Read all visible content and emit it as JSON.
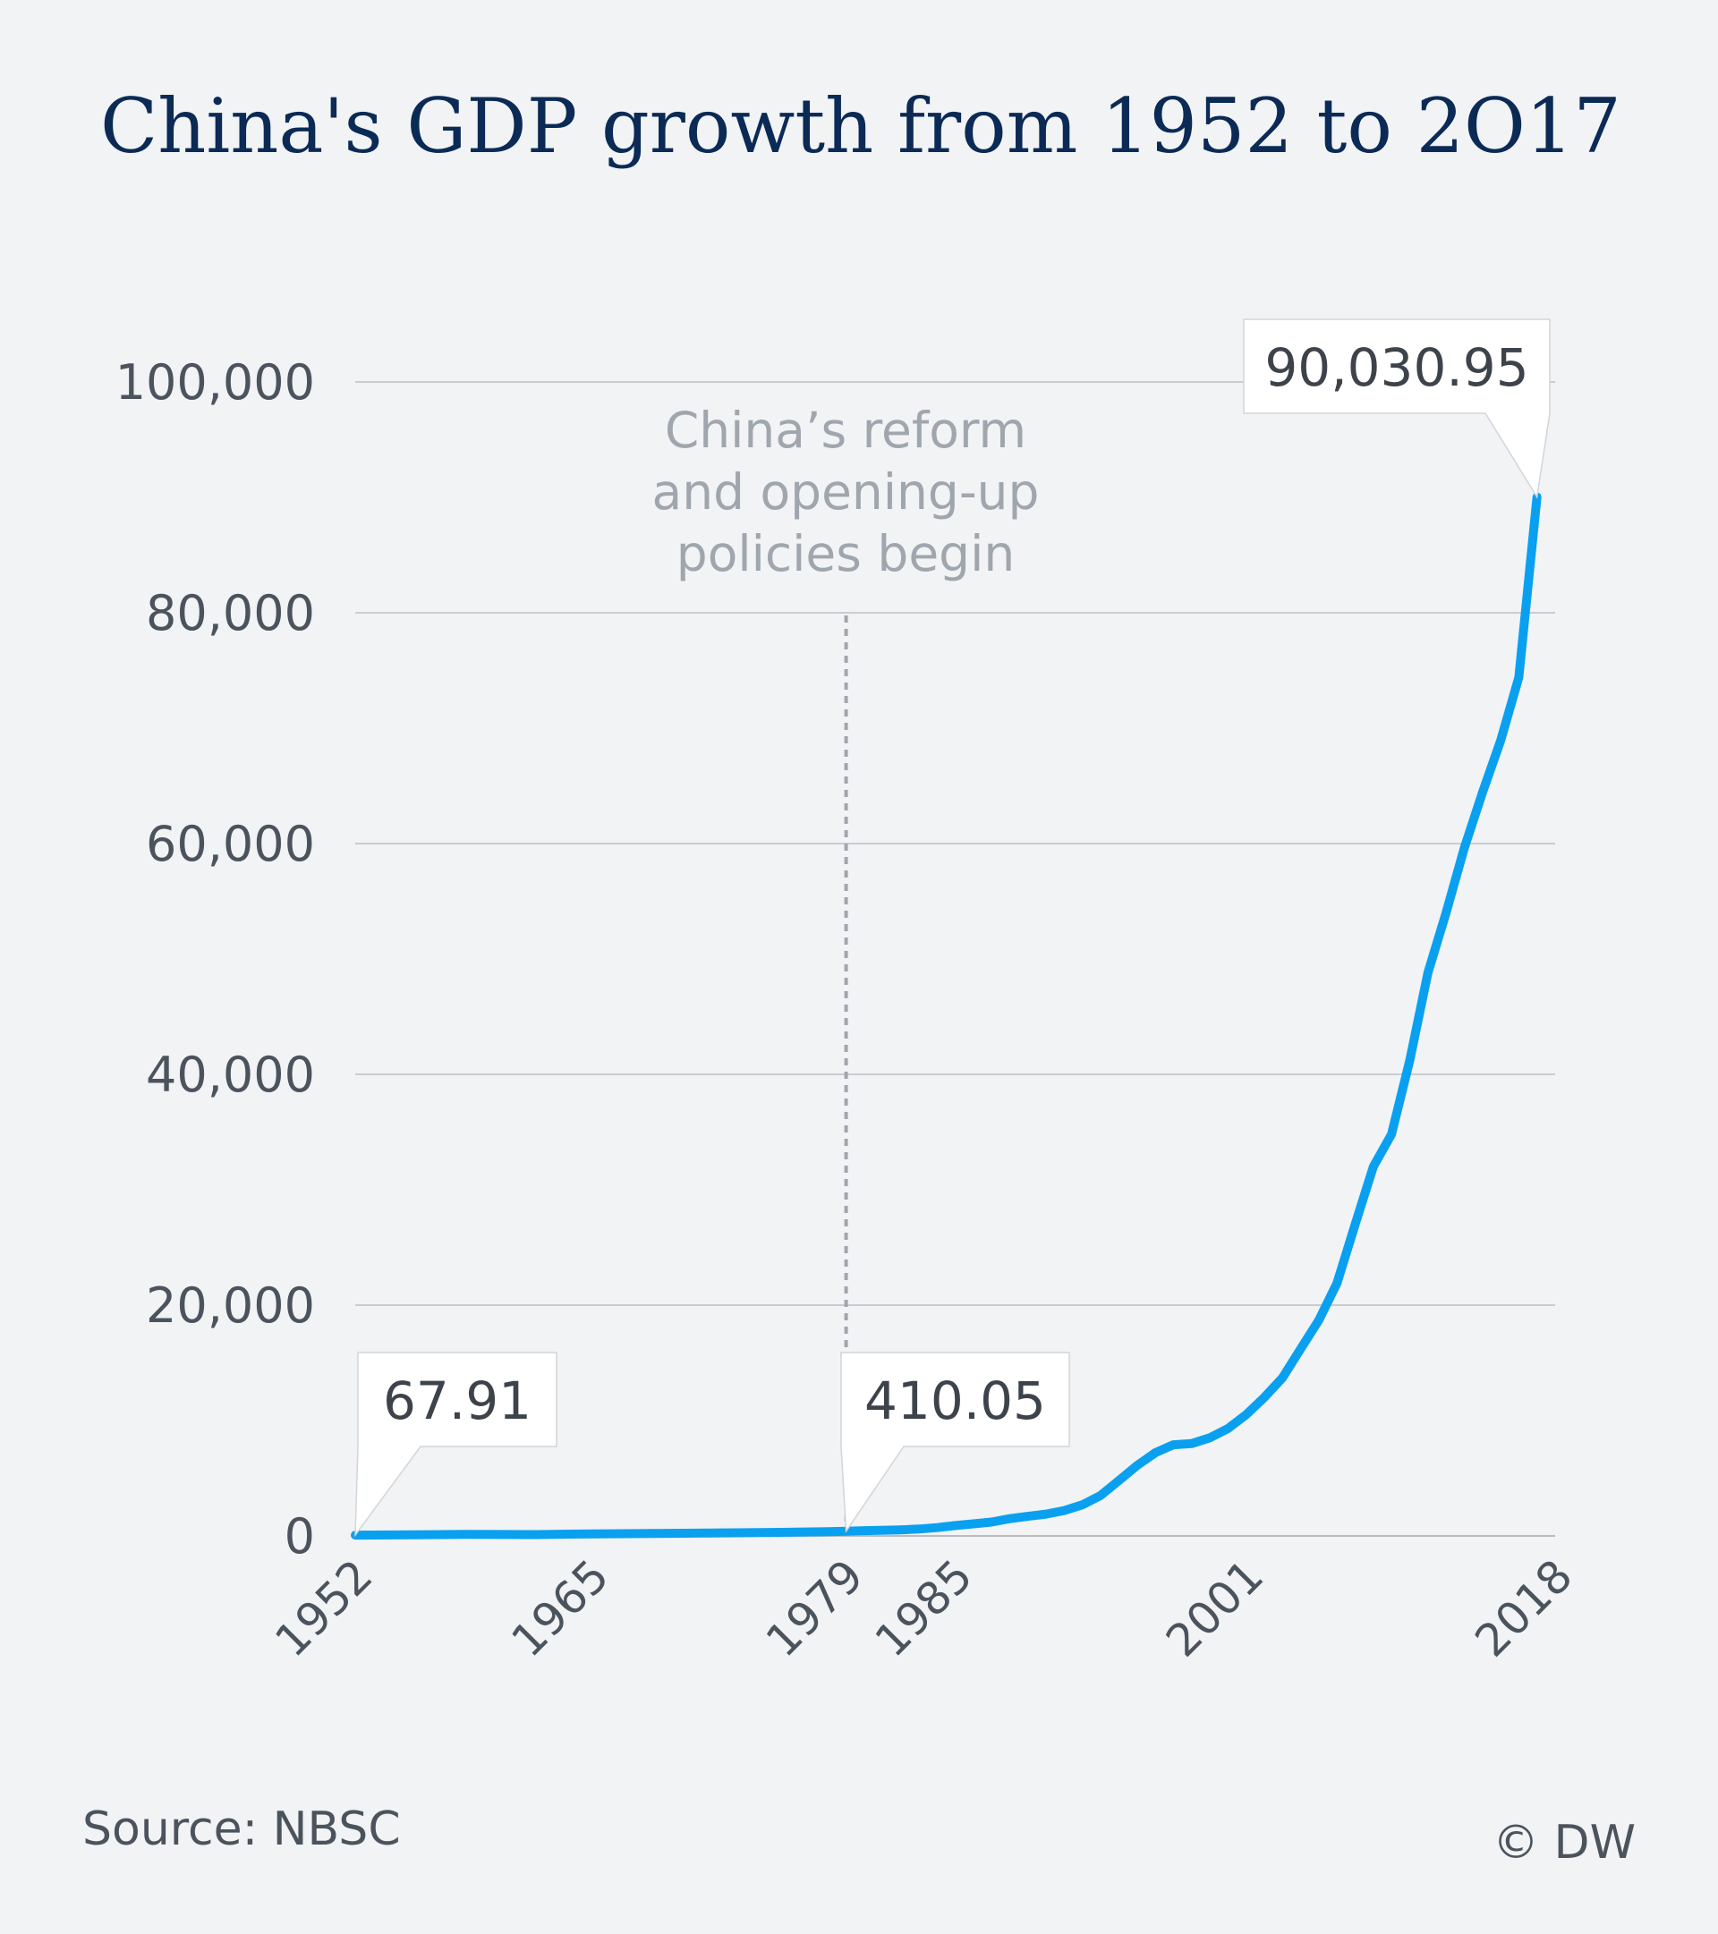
{
  "title": "China's GDP growth from 1952 to 2O17",
  "source": "Source: NBSC",
  "credit": "© DW",
  "colors": {
    "line": "#0aa0f0",
    "title": "#0b2a55",
    "grid": "#c9ccd0",
    "background": "#f1f3f5"
  },
  "chart_data": {
    "type": "line",
    "title": "China's GDP growth from 1952 to 2O17",
    "ylim": [
      0,
      100000
    ],
    "xlim": [
      1952,
      2018
    ],
    "yticks": [
      0,
      20000,
      40000,
      60000,
      80000,
      100000
    ],
    "ytick_labels": [
      "0",
      "20,000",
      "40,000",
      "60,000",
      "80,000",
      "100,000"
    ],
    "xticks": [
      1952,
      1965,
      1979,
      1985,
      2001,
      2018
    ],
    "xtick_labels": [
      "1952",
      "1965",
      "1979",
      "1985",
      "2001",
      "2018"
    ],
    "grid": "horizontal",
    "series": [
      {
        "x": [
          1952,
          1955,
          1958,
          1962,
          1965,
          1970,
          1975,
          1978,
          1979,
          1980,
          1982,
          1983,
          1984,
          1985,
          1986,
          1987,
          1988,
          1989,
          1990,
          1991,
          1992,
          1993,
          1994,
          1995,
          1996,
          1997,
          1998,
          1999,
          2000,
          2001,
          2002,
          2003,
          2004,
          2005,
          2006,
          2007,
          2008,
          2009,
          2010,
          2011,
          2012,
          2013,
          2014,
          2015,
          2016,
          2017
        ],
        "y": [
          67.91,
          90,
          130,
          120,
          180,
          230,
          300,
          370,
          410.05,
          460,
          530,
          600,
          720,
          900,
          1050,
          1200,
          1500,
          1700,
          1890,
          2200,
          2700,
          3500,
          4800,
          6100,
          7200,
          7900,
          8000,
          8500,
          9300,
          10500,
          12000,
          13700,
          16200,
          18700,
          21900,
          27000,
          32000,
          34800,
          41200,
          48800,
          54000,
          59600,
          64400,
          68900,
          74400,
          90030.95
        ]
      }
    ],
    "annotations": [
      {
        "text_lines": [
          "China’s reform",
          "and opening-up",
          "policies begin"
        ],
        "x": 1979
      }
    ],
    "callouts": [
      {
        "label": "67.91",
        "x": 1952,
        "y": 67.91
      },
      {
        "label": "410.05",
        "x": 1979,
        "y": 410.05
      },
      {
        "label": "90,030.95",
        "x": 2017,
        "y": 90030.95
      }
    ]
  }
}
